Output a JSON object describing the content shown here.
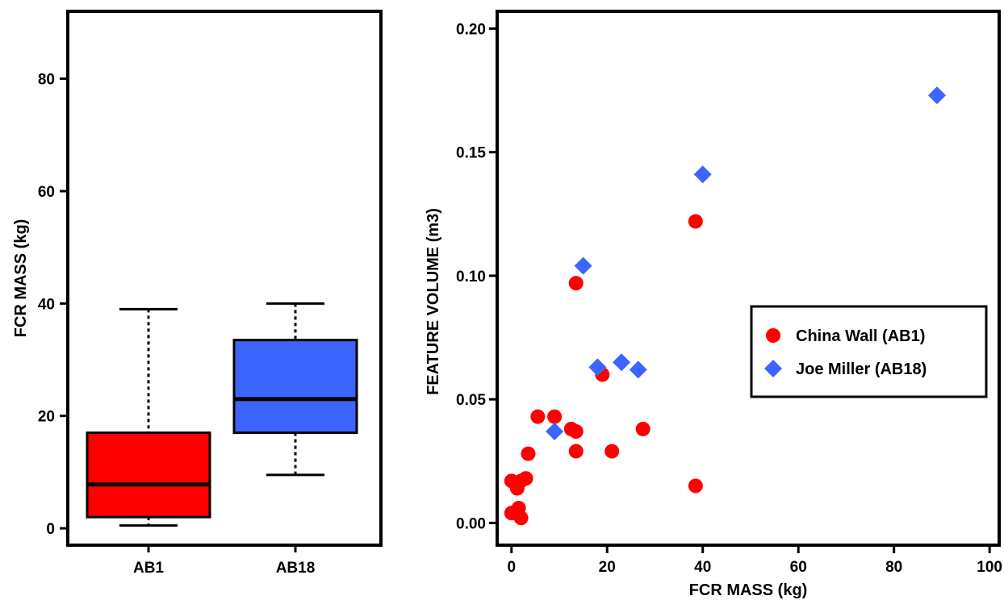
{
  "chart_data": [
    {
      "type": "box",
      "title": "",
      "xlabel": "",
      "ylabel": "FCR MASS (kg)",
      "ylim": [
        -3,
        92
      ],
      "yticks": [
        0,
        20,
        40,
        60,
        80
      ],
      "grid": false,
      "categories": [
        "AB1",
        "AB18"
      ],
      "boxes": [
        {
          "label": "AB1",
          "color": "#ff0000",
          "min": 0.5,
          "q1": 2,
          "median": 7.8,
          "q3": 17,
          "max": 39
        },
        {
          "label": "AB18",
          "color": "#3c64ff",
          "min": 9.5,
          "q1": 17,
          "median": 23,
          "q3": 33.5,
          "max": 40
        }
      ]
    },
    {
      "type": "scatter",
      "title": "",
      "xlabel": "FCR MASS (kg)",
      "ylabel": "FEATURE VOLUME (m3)",
      "xlim": [
        -3,
        102
      ],
      "ylim": [
        -0.009,
        0.207
      ],
      "xticks": [
        0,
        20,
        40,
        60,
        80,
        100
      ],
      "yticks": [
        "0.00",
        "0.05",
        "0.10",
        "0.15",
        "0.20"
      ],
      "grid": false,
      "legend_position": "right",
      "series": [
        {
          "name": "China Wall (AB1)",
          "color": "#ff0000",
          "marker": "circle",
          "points": [
            [
              0,
              0.017
            ],
            [
              0.8,
              0.016
            ],
            [
              1.2,
              0.014
            ],
            [
              2,
              0.017
            ],
            [
              3,
              0.018
            ],
            [
              0,
              0.004
            ],
            [
              1.5,
              0.006
            ],
            [
              2,
              0.002
            ],
            [
              3.5,
              0.028
            ],
            [
              5.5,
              0.043
            ],
            [
              9,
              0.043
            ],
            [
              12.5,
              0.038
            ],
            [
              13.5,
              0.037
            ],
            [
              13.5,
              0.029
            ],
            [
              13.5,
              0.097
            ],
            [
              19,
              0.06
            ],
            [
              21,
              0.029
            ],
            [
              27.5,
              0.038
            ],
            [
              38.5,
              0.122
            ],
            [
              38.5,
              0.015
            ]
          ]
        },
        {
          "name": "Joe Miller (AB18)",
          "color": "#3c64ff",
          "marker": "diamond",
          "points": [
            [
              9,
              0.037
            ],
            [
              15,
              0.104
            ],
            [
              18,
              0.063
            ],
            [
              23,
              0.065
            ],
            [
              26.5,
              0.062
            ],
            [
              40,
              0.141
            ],
            [
              89,
              0.173
            ]
          ]
        }
      ]
    }
  ]
}
